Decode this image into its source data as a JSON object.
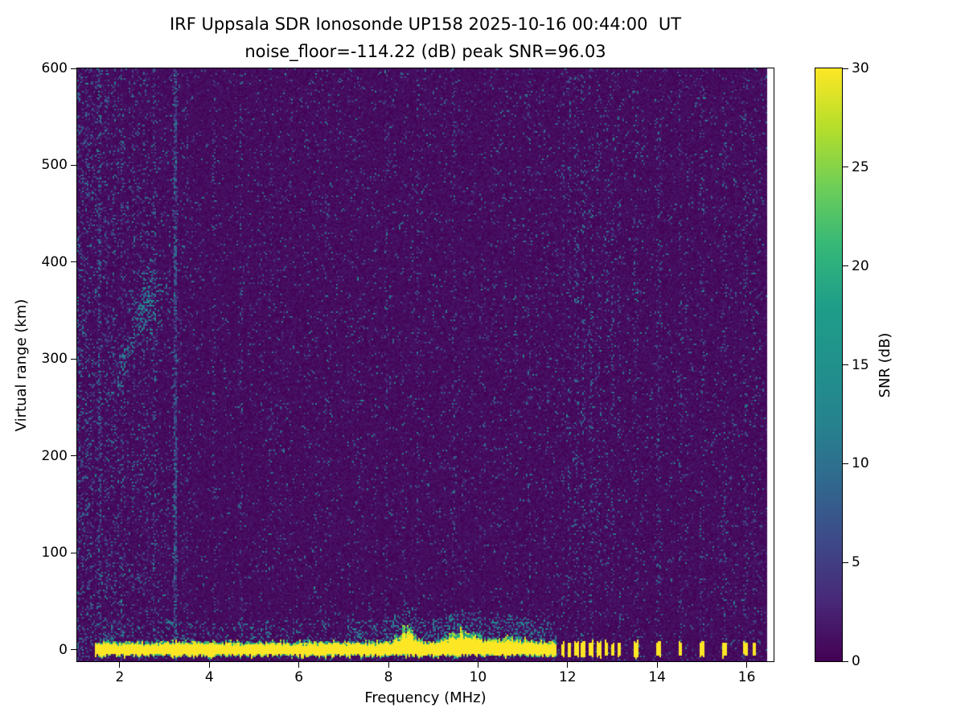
{
  "chart_data": {
    "type": "heatmap",
    "title": "IRF Uppsala SDR Ionosonde UP158 2025-10-16 00:44:00  UT",
    "subtitle": "noise_floor=-114.22 (dB) peak SNR=96.03",
    "xlabel": "Frequency (MHz)",
    "ylabel": "Virtual range (km)",
    "colorbar_label": "SNR (dB)",
    "x_range": [
      1.05,
      16.6
    ],
    "y_range": [
      -12,
      600
    ],
    "x_ticks": [
      2,
      4,
      6,
      8,
      10,
      12,
      14,
      16
    ],
    "y_ticks": [
      0,
      100,
      200,
      300,
      400,
      500,
      600
    ],
    "colorbar_range": [
      0,
      30
    ],
    "colorbar_ticks": [
      0,
      5,
      10,
      15,
      20,
      25,
      30
    ],
    "colormap": "viridis",
    "noise_floor_db": -114.22,
    "peak_snr_db": 96.03,
    "colormap_stops": [
      [
        0,
        68,
        1,
        84
      ],
      [
        0.1,
        72,
        40,
        120
      ],
      [
        0.2,
        62,
        73,
        137
      ],
      [
        0.3,
        49,
        104,
        142
      ],
      [
        0.4,
        38,
        130,
        142
      ],
      [
        0.5,
        33,
        145,
        140
      ],
      [
        0.6,
        31,
        158,
        137
      ],
      [
        0.7,
        53,
        183,
        121
      ],
      [
        0.8,
        110,
        206,
        88
      ],
      [
        0.9,
        181,
        222,
        43
      ],
      [
        1,
        253,
        231,
        37
      ]
    ],
    "features": {
      "seed": 20251016,
      "data_max_freq": 16.47,
      "background": {
        "base_max_db": 1.7,
        "speckle_prob": 0.035,
        "speckle_min_db": 4,
        "speckle_max_db": 16,
        "left_dense_max_freq": 3.8,
        "left_dense_extra_prob": 0.1
      },
      "col_mult_min": 0.55,
      "col_mult_max": 2.1,
      "rfi_lines": [
        {
          "freq": 1.55,
          "halfwidth": 0.05,
          "prob": 0.15
        },
        {
          "freq": 2.05,
          "halfwidth": 0.04,
          "prob": 0.1
        },
        {
          "freq": 2.78,
          "halfwidth": 0.03,
          "prob": 0.18
        },
        {
          "freq": 3.24,
          "halfwidth": 0.025,
          "prob": 0.55
        },
        {
          "freq": 4.1,
          "halfwidth": 0.03,
          "prob": 0.1
        },
        {
          "freq": 4.72,
          "halfwidth": 0.03,
          "prob": 0.12
        },
        {
          "freq": 5.35,
          "halfwidth": 0.03,
          "prob": 0.08
        },
        {
          "freq": 6.6,
          "halfwidth": 0.03,
          "prob": 0.07
        },
        {
          "freq": 7.95,
          "halfwidth": 0.03,
          "prob": 0.09
        },
        {
          "freq": 8.65,
          "halfwidth": 0.03,
          "prob": 0.08
        },
        {
          "freq": 9.45,
          "halfwidth": 0.035,
          "prob": 0.12
        },
        {
          "freq": 10.15,
          "halfwidth": 0.03,
          "prob": 0.07
        },
        {
          "freq": 11.15,
          "halfwidth": 0.03,
          "prob": 0.08
        }
      ],
      "hf_stripe_prob": 0.1,
      "ionospheric_echo": {
        "min_db": 6,
        "max_db": 15,
        "clusters": [
          {
            "type": "slope",
            "f0": 1.95,
            "f1": 2.75,
            "r0": 275,
            "r1": 385,
            "sigma_km": 16,
            "prob": 0.33
          },
          {
            "type": "blob",
            "f": 2.6,
            "r": 355,
            "df": 0.25,
            "dr": 30,
            "prob": 0.3
          },
          {
            "type": "slope",
            "f0": 2.75,
            "f1": 3.3,
            "r0": 385,
            "r1": 355,
            "sigma_km": 13,
            "prob": 0.1
          }
        ]
      },
      "ground_echo": {
        "freq_start": 1.45,
        "freq_end": 11.75,
        "base_half_km": 8,
        "below_km": 7,
        "fuzz_km": 22,
        "fuzz_prob": 0.3,
        "bumps": [
          {
            "freq": 8.4,
            "sigma": 0.22,
            "extra_km": 15
          },
          {
            "freq": 9.65,
            "sigma": 0.45,
            "extra_km": 11
          },
          {
            "freq": 10.8,
            "sigma": 0.35,
            "extra_km": 5
          }
        ]
      },
      "hf_pulses": [
        {
          "freq": 11.9,
          "halfwidth": 0.045
        },
        {
          "freq": 12.05,
          "halfwidth": 0.04
        },
        {
          "freq": 12.2,
          "halfwidth": 0.04
        },
        {
          "freq": 12.35,
          "halfwidth": 0.045
        },
        {
          "freq": 12.52,
          "halfwidth": 0.04
        },
        {
          "freq": 12.7,
          "halfwidth": 0.05
        },
        {
          "freq": 12.87,
          "halfwidth": 0.04
        },
        {
          "freq": 13.02,
          "halfwidth": 0.04
        },
        {
          "freq": 13.15,
          "halfwidth": 0.035
        },
        {
          "freq": 13.52,
          "halfwidth": 0.05
        },
        {
          "freq": 14.02,
          "halfwidth": 0.055
        },
        {
          "freq": 14.52,
          "halfwidth": 0.05
        },
        {
          "freq": 15.0,
          "halfwidth": 0.045
        },
        {
          "freq": 15.5,
          "halfwidth": 0.05
        },
        {
          "freq": 15.97,
          "halfwidth": 0.045
        },
        {
          "freq": 16.17,
          "halfwidth": 0.04
        }
      ]
    }
  }
}
